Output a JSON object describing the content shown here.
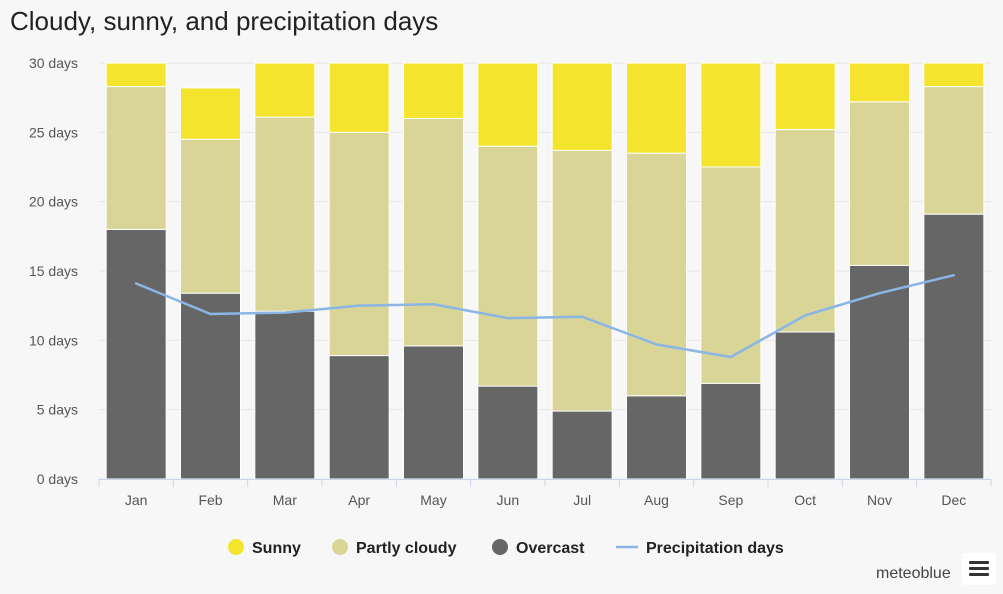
{
  "chart_data": {
    "type": "bar",
    "stacked": true,
    "title": "Cloudy, sunny, and precipitation days",
    "categories": [
      "Jan",
      "Feb",
      "Mar",
      "Apr",
      "May",
      "Jun",
      "Jul",
      "Aug",
      "Sep",
      "Oct",
      "Nov",
      "Dec"
    ],
    "series": [
      {
        "name": "Overcast",
        "color": "#666666",
        "values": [
          18.0,
          13.4,
          12.1,
          8.9,
          9.6,
          6.7,
          4.9,
          6.0,
          6.9,
          10.6,
          15.4,
          19.1
        ]
      },
      {
        "name": "Partly cloudy",
        "color": "#d8d596",
        "values": [
          10.3,
          11.1,
          14.0,
          16.1,
          16.4,
          17.3,
          18.8,
          17.5,
          15.6,
          14.6,
          11.8,
          9.2
        ]
      },
      {
        "name": "Sunny",
        "color": "#f4e42d",
        "values": [
          1.7,
          3.7,
          3.9,
          5.0,
          4.0,
          6.0,
          6.3,
          6.5,
          7.5,
          4.8,
          2.8,
          1.7
        ]
      }
    ],
    "line_series": {
      "name": "Precipitation days",
      "color": "#8ab6e6",
      "values": [
        14.1,
        11.9,
        12.0,
        12.5,
        12.6,
        11.6,
        11.7,
        9.7,
        8.8,
        11.8,
        13.4,
        14.7
      ]
    },
    "ylim": [
      0,
      30
    ],
    "yticks": [
      0,
      5,
      10,
      15,
      20,
      25,
      30
    ],
    "ytick_labels": [
      "0 days",
      "5 days",
      "10 days",
      "15 days",
      "20 days",
      "25 days",
      "30 days"
    ],
    "grid": true,
    "legend_position": "bottom-center",
    "legend": [
      "Sunny",
      "Partly cloudy",
      "Overcast",
      "Precipitation days"
    ]
  },
  "credit": "meteoblue",
  "colors": {
    "grid": "#e6e6e6",
    "axis": "#ccd6eb",
    "background": "#f7f7f7"
  }
}
